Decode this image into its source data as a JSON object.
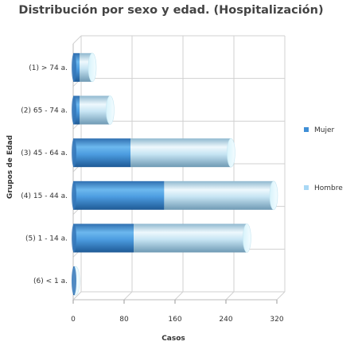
{
  "chart_data": {
    "type": "bar",
    "orientation": "horizontal",
    "stacked": true,
    "style": "3d-cylinder",
    "title": "Distribución por sexo y edad. (Hospitalización)",
    "xlabel": "Casos",
    "ylabel": "Grupos de Edad",
    "categories": [
      "(1) > 74 a.",
      "(2) 65 - 74 a.",
      "(3) 45 - 64 a.",
      "(4) 15 - 44 a.",
      "(5) 1 - 14 a.",
      "(6) < 1 a."
    ],
    "series": [
      {
        "name": "Mujer",
        "values": [
          10,
          10,
          90,
          143,
          95,
          3
        ],
        "color": "#3f8fd6"
      },
      {
        "name": "Hombre",
        "values": [
          20,
          48,
          158,
          172,
          178,
          1
        ],
        "color": "#a9d8f5"
      }
    ],
    "xlim": [
      0,
      320
    ],
    "xticks": [
      0,
      80,
      160,
      240,
      320
    ],
    "grid": true,
    "legend": "right"
  }
}
